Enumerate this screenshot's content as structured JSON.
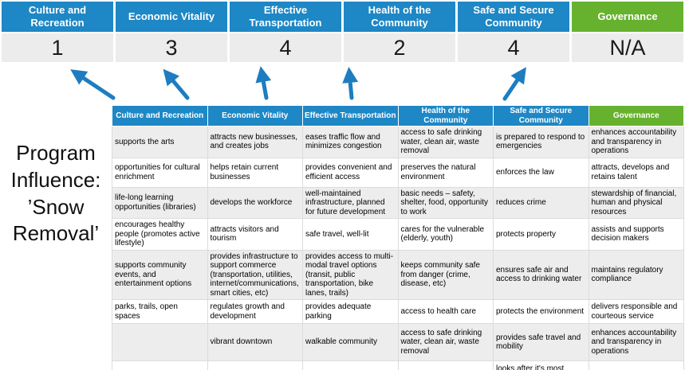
{
  "program_label": "Program Influence: ’Snow Removal’",
  "colors": {
    "header_blue": "#1e87c5",
    "header_green": "#66b22e",
    "highlight_yellow": "#ffff9c",
    "score_band_gray": "#ececec",
    "row_band_gray": "#ededed",
    "arrow_blue": "#1d7dc0"
  },
  "scoreboard": {
    "columns": [
      {
        "label": "Culture and Recreation",
        "score": "1",
        "theme": "blue"
      },
      {
        "label": "Economic Vitality",
        "score": "3",
        "theme": "blue"
      },
      {
        "label": "Effective Transportation",
        "score": "4",
        "theme": "blue"
      },
      {
        "label": "Health of the Community",
        "score": "2",
        "theme": "blue"
      },
      {
        "label": "Safe and Secure Community",
        "score": "4",
        "theme": "blue"
      },
      {
        "label": "Governance",
        "score": "N/A",
        "theme": "green"
      }
    ]
  },
  "matrix": {
    "headers": [
      {
        "label": "Culture and Recreation",
        "theme": "blue"
      },
      {
        "label": "Economic Vitality",
        "theme": "blue"
      },
      {
        "label": "Effective Transportation",
        "theme": "blue"
      },
      {
        "label": "Health of the Community",
        "theme": "blue"
      },
      {
        "label": "Safe and Secure Community",
        "theme": "blue"
      },
      {
        "label": "Governance",
        "theme": "green"
      }
    ],
    "rows": [
      [
        {
          "text": "supports the arts",
          "highlight": false
        },
        {
          "text": "attracts new businesses, and creates jobs",
          "highlight": false
        },
        {
          "text": "eases traffic flow and minimizes congestion",
          "highlight": true
        },
        {
          "text": "access to safe drinking water, clean air, waste removal",
          "highlight": false
        },
        {
          "text": "is prepared to respond to emergencies",
          "highlight": true
        },
        {
          "text": "enhances accountability and transparency in operations",
          "highlight": false
        }
      ],
      [
        {
          "text": "opportunities for cultural enrichment",
          "highlight": false
        },
        {
          "text": "helps retain current businesses",
          "highlight": true
        },
        {
          "text": "provides convenient and efficient access",
          "highlight": true
        },
        {
          "text": "preserves the natural environment",
          "highlight": false
        },
        {
          "text": "enforces the law",
          "highlight": false
        },
        {
          "text": "attracts, develops and retains talent",
          "highlight": false
        }
      ],
      [
        {
          "text": "life-long learning opportunities (libraries)",
          "highlight": false
        },
        {
          "text": "develops the workforce",
          "highlight": false
        },
        {
          "text": "well-maintained infrastructure, planned for future development",
          "highlight": false
        },
        {
          "text": "basic needs – safety, shelter, food, opportunity to work",
          "highlight": true
        },
        {
          "text": "reduces crime",
          "highlight": false
        },
        {
          "text": "stewardship of financial, human and physical resources",
          "highlight": false
        }
      ],
      [
        {
          "text": "encourages healthy people (promotes active lifestyle)",
          "highlight": false
        },
        {
          "text": "attracts visitors and tourism",
          "highlight": false
        },
        {
          "text": "safe travel, well-lit",
          "highlight": true
        },
        {
          "text": "cares for the vulnerable (elderly, youth)",
          "highlight": true
        },
        {
          "text": "protects property",
          "highlight": true
        },
        {
          "text": "assists and supports decision makers",
          "highlight": false
        }
      ],
      [
        {
          "text": "supports community events, and entertainment options",
          "highlight": false
        },
        {
          "text": "provides infrastructure to support commerce (transportation, utilities, internet/communications, smart cities, etc)",
          "highlight": true
        },
        {
          "text": "provides access to multi-modal travel options (transit, public transportation, bike lanes, trails)",
          "highlight": true
        },
        {
          "text": "keeps community safe from danger (crime, disease, etc)",
          "highlight": true
        },
        {
          "text": "ensures safe air and access to drinking water",
          "highlight": false
        },
        {
          "text": "maintains regulatory compliance",
          "highlight": false
        }
      ],
      [
        {
          "text": "parks, trails, open spaces",
          "highlight": true
        },
        {
          "text": "regulates growth and development",
          "highlight": false
        },
        {
          "text": "provides adequate parking",
          "highlight": false
        },
        {
          "text": "access to health care",
          "highlight": false
        },
        {
          "text": "protects the environment",
          "highlight": false
        },
        {
          "text": "delivers responsible and courteous service",
          "highlight": false
        }
      ],
      [
        {
          "text": "",
          "highlight": false
        },
        {
          "text": "vibrant downtown",
          "highlight": false
        },
        {
          "text": "walkable community",
          "highlight": false
        },
        {
          "text": "access to safe drinking water, clean air, waste removal",
          "highlight": false
        },
        {
          "text": "provides safe travel and mobility",
          "highlight": true
        },
        {
          "text": "enhances accountability and transparency in operations",
          "highlight": false
        }
      ],
      [
        {
          "text": "",
          "highlight": false
        },
        {
          "text": "",
          "highlight": false
        },
        {
          "text": "",
          "highlight": false
        },
        {
          "text": "",
          "highlight": false
        },
        {
          "text": "looks after it's most vulnerable",
          "highlight": true
        },
        {
          "text": "",
          "highlight": false
        }
      ]
    ]
  }
}
